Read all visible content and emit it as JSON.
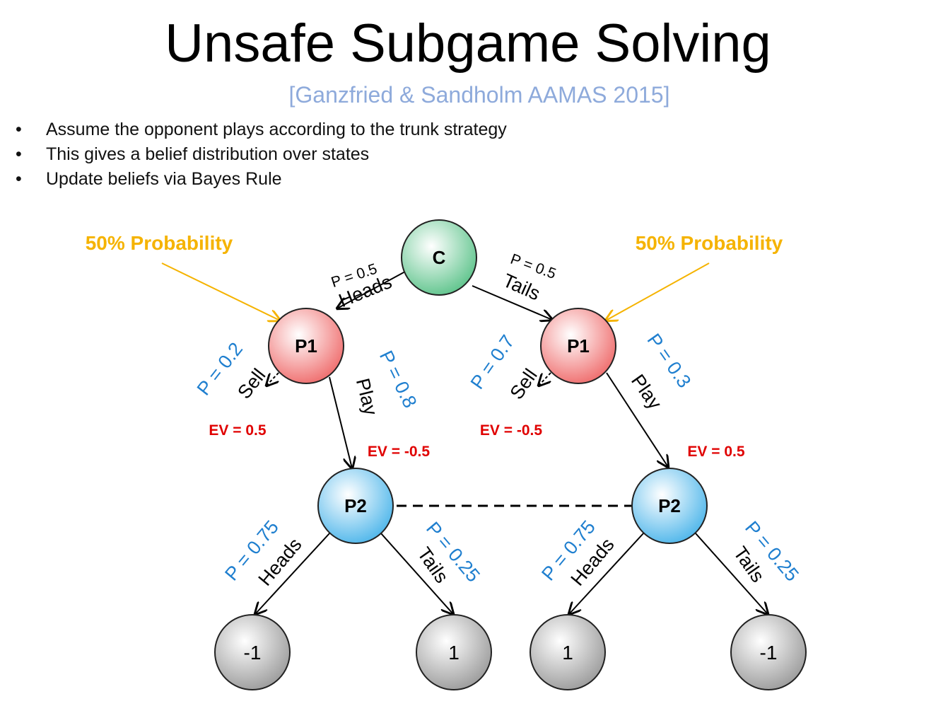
{
  "title": "Unsafe Subgame Solving",
  "subtitle": "[Ganzfried & Sandholm AAMAS 2015]",
  "bullets": [
    "Assume the opponent plays according to the trunk strategy",
    "This gives a belief distribution over states",
    "Update beliefs via Bayes Rule"
  ],
  "colors": {
    "chance_node": "#5cc38a",
    "p1_node": "#ef6b6b",
    "p2_node": "#4cb5ea",
    "leaf_node": "#9a9a9a",
    "blue_text": "#1f7fcf",
    "ev_text": "#e00000",
    "annotation": "#f5b301"
  },
  "diagram": {
    "annotations": {
      "left": "50% Probability",
      "right": "50% Probability"
    },
    "nodes": {
      "chance": "C",
      "p1_left": "P1",
      "p1_right": "P1",
      "p2_left": "P2",
      "p2_right": "P2",
      "leaf_1": "-1",
      "leaf_2": "1",
      "leaf_3": "1",
      "leaf_4": "-1"
    },
    "chance_edges": {
      "left_prob": "P = 0.5",
      "left_action": "Heads",
      "right_prob": "P = 0.5",
      "right_action": "Tails"
    },
    "p1_left_edges": {
      "sell_prob": "P = 0.2",
      "sell_action": "Sell",
      "sell_ev": "EV = 0.5",
      "play_prob": "P = 0.8",
      "play_action": "Play",
      "play_ev": "EV = -0.5"
    },
    "p1_right_edges": {
      "sell_prob": "P = 0.7",
      "sell_action": "Sell",
      "sell_ev": "EV = -0.5",
      "play_prob": "P = 0.3",
      "play_action": "Play",
      "play_ev": "EV = 0.5"
    },
    "p2_left_edges": {
      "heads_prob": "P = 0.75",
      "heads_action": "Heads",
      "tails_prob": "P = 0.25",
      "tails_action": "Tails"
    },
    "p2_right_edges": {
      "heads_prob": "P = 0.75",
      "heads_action": "Heads",
      "tails_prob": "P = 0.25",
      "tails_action": "Tails"
    }
  }
}
